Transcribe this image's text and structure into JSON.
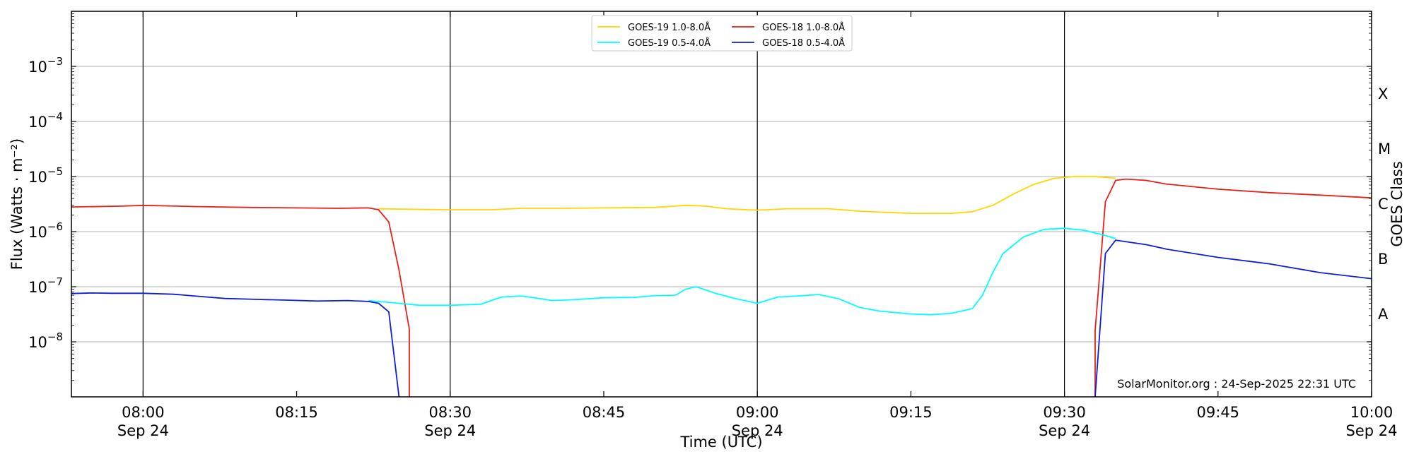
{
  "chart_data": {
    "type": "line",
    "title": "",
    "xlabel": "Time (UTC)",
    "ylabel": "Flux (Watts · m⁻²)",
    "ylabel_right": "GOES Class",
    "y_scale": "log",
    "ylim": [
      1e-09,
      0.01
    ],
    "xlim": [
      "07:53",
      "10:00"
    ],
    "grid": "horizontal at decades",
    "legend_placement": "top-center",
    "credit": "SolarMonitor.org : 24-Sep-2025 22:31 UTC",
    "x_ticks": [
      {
        "time": "08:00",
        "label": "08:00",
        "sub": "Sep 24"
      },
      {
        "time": "08:15",
        "label": "08:15",
        "sub": ""
      },
      {
        "time": "08:30",
        "label": "08:30",
        "sub": "Sep 24"
      },
      {
        "time": "08:45",
        "label": "08:45",
        "sub": ""
      },
      {
        "time": "09:00",
        "label": "09:00",
        "sub": "Sep 24"
      },
      {
        "time": "09:15",
        "label": "09:15",
        "sub": ""
      },
      {
        "time": "09:30",
        "label": "09:30",
        "sub": "Sep 24"
      },
      {
        "time": "09:45",
        "label": "09:45",
        "sub": ""
      },
      {
        "time": "10:00",
        "label": "10:00",
        "sub": "Sep 24"
      }
    ],
    "vertical_lines": [
      "08:00",
      "08:30",
      "09:00",
      "09:30"
    ],
    "y_ticks": [
      {
        "value": 1e-08,
        "base": "10",
        "exp": "−8"
      },
      {
        "value": 1e-07,
        "base": "10",
        "exp": "−7"
      },
      {
        "value": 1e-06,
        "base": "10",
        "exp": "−6"
      },
      {
        "value": 1e-05,
        "base": "10",
        "exp": "−5"
      },
      {
        "value": 0.0001,
        "base": "10",
        "exp": "−4"
      },
      {
        "value": 0.001,
        "base": "10",
        "exp": "−3"
      }
    ],
    "goes_classes": [
      {
        "label": "A",
        "value": 3.16e-08
      },
      {
        "label": "B",
        "value": 3.16e-07
      },
      {
        "label": "C",
        "value": 3.16e-06
      },
      {
        "label": "M",
        "value": 3.16e-05
      },
      {
        "label": "X",
        "value": 0.000316
      }
    ],
    "series": [
      {
        "name": "GOES-19 1.0-8.0Å",
        "color": "#ffd700",
        "points": [
          [
            "08:23",
            2.6e-06
          ],
          [
            "08:26",
            2.55e-06
          ],
          [
            "08:30",
            2.5e-06
          ],
          [
            "08:34",
            2.5e-06
          ],
          [
            "08:37",
            2.65e-06
          ],
          [
            "08:41",
            2.65e-06
          ],
          [
            "08:45",
            2.7e-06
          ],
          [
            "08:50",
            2.75e-06
          ],
          [
            "08:53",
            3e-06
          ],
          [
            "08:55",
            2.9e-06
          ],
          [
            "08:57",
            2.6e-06
          ],
          [
            "09:00",
            2.45e-06
          ],
          [
            "09:03",
            2.6e-06
          ],
          [
            "09:07",
            2.6e-06
          ],
          [
            "09:10",
            2.35e-06
          ],
          [
            "09:15",
            2.15e-06
          ],
          [
            "09:19",
            2.15e-06
          ],
          [
            "09:21",
            2.3e-06
          ],
          [
            "09:23",
            3e-06
          ],
          [
            "09:25",
            4.8e-06
          ],
          [
            "09:27",
            7.2e-06
          ],
          [
            "09:29",
            9.3e-06
          ],
          [
            "09:31",
            1e-05
          ],
          [
            "09:33",
            1e-05
          ],
          [
            "09:35",
            9.3e-06
          ]
        ]
      },
      {
        "name": "GOES-18 1.0-8.0Å",
        "color": "#e8201a",
        "points": [
          [
            "07:53",
            2.8e-06
          ],
          [
            "07:58",
            2.9e-06
          ],
          [
            "08:00",
            3e-06
          ],
          [
            "08:05",
            2.85e-06
          ],
          [
            "08:10",
            2.75e-06
          ],
          [
            "08:15",
            2.7e-06
          ],
          [
            "08:19",
            2.65e-06
          ],
          [
            "08:22",
            2.7e-06
          ],
          [
            "08:23",
            2.5e-06
          ],
          [
            "08:24",
            1.5e-06
          ],
          [
            "08:25",
            2e-07
          ],
          [
            "08:26",
            1.7e-08
          ],
          [
            "08:26",
            1e-09
          ]
        ]
      },
      {
        "name": "GOES-18 1.0-8.0Å (resume)",
        "color": "#e8201a",
        "points": [
          [
            "09:33",
            1e-09
          ],
          [
            "09:33",
            1.6e-08
          ],
          [
            "09:34",
            3.5e-06
          ],
          [
            "09:35",
            8.5e-06
          ],
          [
            "09:36",
            9e-06
          ],
          [
            "09:38",
            8.5e-06
          ],
          [
            "09:40",
            7.3e-06
          ],
          [
            "09:45",
            5.9e-06
          ],
          [
            "09:50",
            5.1e-06
          ],
          [
            "09:55",
            4.6e-06
          ],
          [
            "10:00",
            4.1e-06
          ]
        ]
      },
      {
        "name": "GOES-19 0.5-4.0Å",
        "color": "#00ffff",
        "points": [
          [
            "08:22",
            5.6e-08
          ],
          [
            "08:25",
            5e-08
          ],
          [
            "08:27",
            4.6e-08
          ],
          [
            "08:30",
            4.6e-08
          ],
          [
            "08:33",
            4.8e-08
          ],
          [
            "08:35",
            6.5e-08
          ],
          [
            "08:37",
            6.8e-08
          ],
          [
            "08:40",
            5.6e-08
          ],
          [
            "08:42",
            5.8e-08
          ],
          [
            "08:45",
            6.3e-08
          ],
          [
            "08:48",
            6.4e-08
          ],
          [
            "08:50",
            6.9e-08
          ],
          [
            "08:52",
            7e-08
          ],
          [
            "08:53",
            9e-08
          ],
          [
            "08:54",
            1e-07
          ],
          [
            "08:56",
            7.5e-08
          ],
          [
            "08:58",
            6e-08
          ],
          [
            "09:00",
            5e-08
          ],
          [
            "09:02",
            6.5e-08
          ],
          [
            "09:04",
            6.8e-08
          ],
          [
            "09:06",
            7.2e-08
          ],
          [
            "09:08",
            6e-08
          ],
          [
            "09:10",
            4.2e-08
          ],
          [
            "09:12",
            3.6e-08
          ],
          [
            "09:15",
            3.2e-08
          ],
          [
            "09:17",
            3.1e-08
          ],
          [
            "09:19",
            3.3e-08
          ],
          [
            "09:21",
            4e-08
          ],
          [
            "09:22",
            7e-08
          ],
          [
            "09:23",
            1.8e-07
          ],
          [
            "09:24",
            4e-07
          ],
          [
            "09:26",
            8e-07
          ],
          [
            "09:28",
            1.1e-06
          ],
          [
            "09:30",
            1.15e-06
          ],
          [
            "09:32",
            1.05e-06
          ],
          [
            "09:34",
            8.5e-07
          ],
          [
            "09:35",
            7.5e-07
          ]
        ]
      },
      {
        "name": "GOES-18 0.5-4.0Å",
        "color": "#0d1fd6",
        "points": [
          [
            "07:53",
            7.5e-08
          ],
          [
            "07:55",
            7.7e-08
          ],
          [
            "07:57",
            7.6e-08
          ],
          [
            "08:00",
            7.6e-08
          ],
          [
            "08:03",
            7.3e-08
          ],
          [
            "08:05",
            6.8e-08
          ],
          [
            "08:08",
            6.1e-08
          ],
          [
            "08:11",
            5.9e-08
          ],
          [
            "08:14",
            5.7e-08
          ],
          [
            "08:17",
            5.5e-08
          ],
          [
            "08:20",
            5.6e-08
          ],
          [
            "08:22",
            5.4e-08
          ],
          [
            "08:23",
            5e-08
          ],
          [
            "08:24",
            3.5e-08
          ],
          [
            "08:25",
            1e-09
          ]
        ]
      },
      {
        "name": "GOES-18 0.5-4.0Å (resume)",
        "color": "#0d1fd6",
        "points": [
          [
            "09:33",
            1e-09
          ],
          [
            "09:34",
            4e-07
          ],
          [
            "09:35",
            7e-07
          ],
          [
            "09:38",
            5.8e-07
          ],
          [
            "09:40",
            4.8e-07
          ],
          [
            "09:45",
            3.4e-07
          ],
          [
            "09:50",
            2.6e-07
          ],
          [
            "09:55",
            1.8e-07
          ],
          [
            "10:00",
            1.4e-07
          ]
        ]
      }
    ],
    "legend": [
      {
        "label": "GOES-19 1.0-8.0Å",
        "color": "#ffd700"
      },
      {
        "label": "GOES-19 0.5-4.0Å",
        "color": "#00ffff"
      },
      {
        "label": "GOES-18 1.0-8.0Å",
        "color": "#e8201a"
      },
      {
        "label": "GOES-18 0.5-4.0Å",
        "color": "#0d1fd6"
      }
    ]
  }
}
